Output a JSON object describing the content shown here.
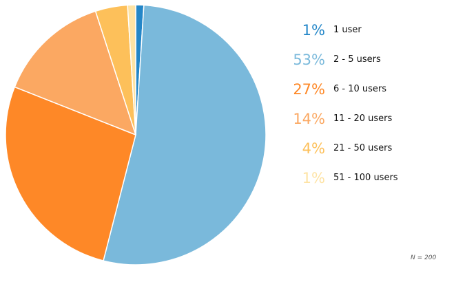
{
  "chart_data": {
    "type": "pie",
    "start_angle_deg": 0,
    "direction": "clockwise",
    "slices": [
      {
        "label": "1 user",
        "value": 1,
        "pct_label": "1%",
        "color": "#2386c8"
      },
      {
        "label": "2 - 5 users",
        "value": 53,
        "pct_label": "53%",
        "color": "#7ab9db"
      },
      {
        "label": "6 - 10 users",
        "value": 27,
        "pct_label": "27%",
        "color": "#fe8827"
      },
      {
        "label": "11 - 20 users",
        "value": 14,
        "pct_label": "14%",
        "color": "#fba862"
      },
      {
        "label": "21 - 50 users",
        "value": 4,
        "pct_label": "4%",
        "color": "#fdc05a"
      },
      {
        "label": "51 - 100 users",
        "value": 1,
        "pct_label": "1%",
        "color": "#fee3a4"
      }
    ],
    "legend_position": "right",
    "note": "N = 200"
  }
}
